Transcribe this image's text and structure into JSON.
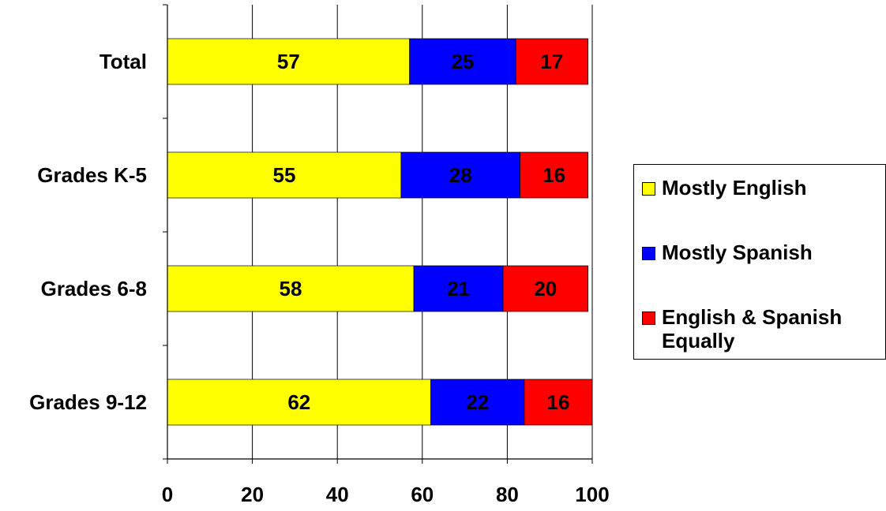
{
  "chart_data": {
    "type": "bar",
    "orientation": "horizontal",
    "stacked": true,
    "categories": [
      "Total",
      "Grades K-5",
      "Grades 6-8",
      "Grades 9-12"
    ],
    "series": [
      {
        "name": "Mostly English",
        "color": "#ffff00",
        "values": [
          57,
          55,
          58,
          62
        ]
      },
      {
        "name": "Mostly Spanish",
        "color": "#0000ff",
        "values": [
          25,
          28,
          21,
          22
        ]
      },
      {
        "name": "English & Spanish Equally",
        "color": "#ff0000",
        "values": [
          17,
          16,
          20,
          16
        ]
      }
    ],
    "xticks": [
      "0",
      "20",
      "40",
      "60",
      "80",
      "100"
    ],
    "xlim": [
      0,
      100
    ],
    "grid": "vertical",
    "legend_position": "right",
    "title": "",
    "xlabel": "",
    "ylabel": ""
  }
}
